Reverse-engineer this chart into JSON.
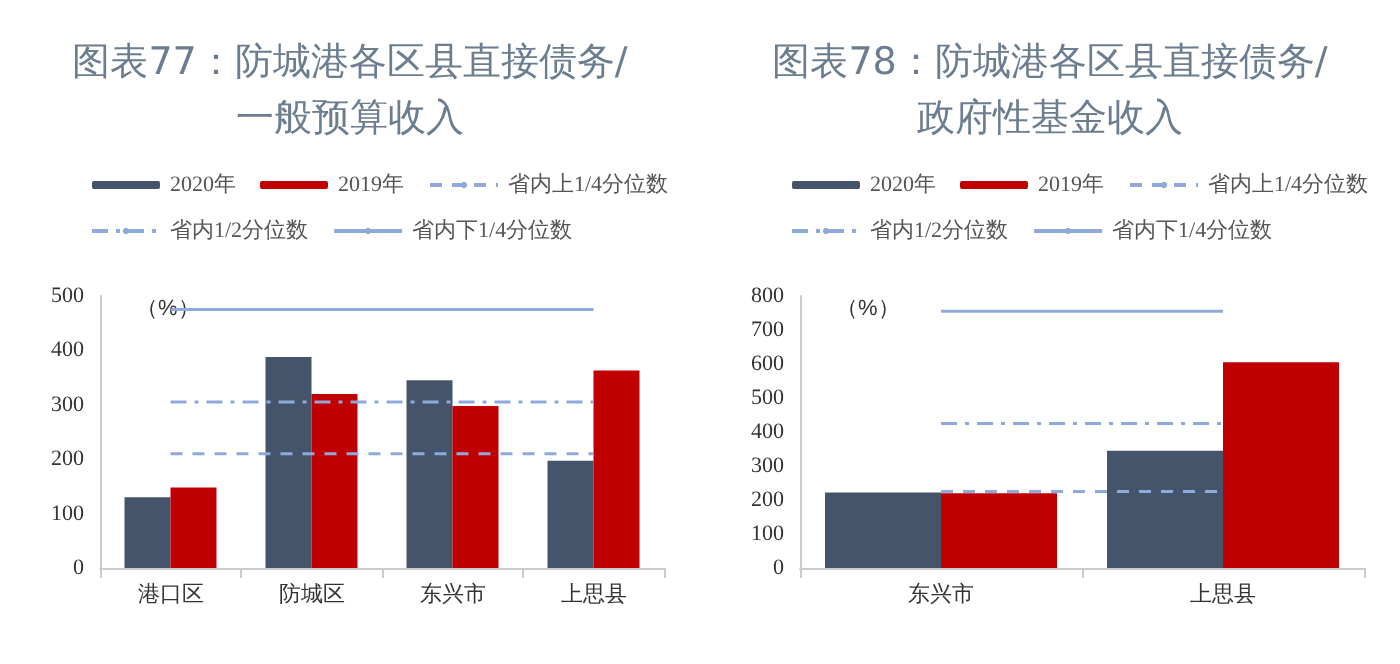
{
  "chart_data": [
    {
      "type": "bar",
      "title": "图表77：防城港各区县直接债务/一般预算收入",
      "ylabel": "（%）",
      "categories": [
        "港口区",
        "防城区",
        "东兴市",
        "上思县"
      ],
      "ylim": [
        0,
        500
      ],
      "yticks": [
        0,
        100,
        200,
        300,
        400,
        500
      ],
      "grid": false,
      "legend": "top",
      "marker": "none",
      "series": [
        {
          "name": "2020年",
          "color": "#44546a",
          "values": [
            130,
            388,
            345,
            197
          ]
        },
        {
          "name": "2019年",
          "color": "#c00000",
          "values": [
            148,
            320,
            298,
            363
          ]
        },
        {
          "name": "省内上1/4分位数",
          "type": "line",
          "line_style": "dashed",
          "color": "#8eaadb",
          "values": [
            210,
            210,
            210,
            210
          ]
        },
        {
          "name": "省内1/2分位数",
          "type": "line",
          "line_style": "dashdot",
          "color": "#8eaadb",
          "values": [
            305,
            305,
            305,
            305
          ]
        },
        {
          "name": "省内下1/4分位数",
          "type": "line",
          "line_style": "solid",
          "color": "#8eaadb",
          "values": [
            475,
            475,
            475,
            475
          ]
        }
      ]
    },
    {
      "type": "bar",
      "title": "图表78：防城港各区县直接债务/政府性基金收入",
      "ylabel": "（%）",
      "categories": [
        "东兴市",
        "上思县"
      ],
      "ylim": [
        0,
        800
      ],
      "yticks": [
        0,
        100,
        200,
        300,
        400,
        500,
        600,
        700,
        800
      ],
      "grid": false,
      "legend": "top",
      "marker": "none",
      "series": [
        {
          "name": "2020年",
          "color": "#44546a",
          "values": [
            222,
            345
          ]
        },
        {
          "name": "2019年",
          "color": "#c00000",
          "values": [
            220,
            605
          ]
        },
        {
          "name": "省内上1/4分位数",
          "type": "line",
          "line_style": "dashed",
          "color": "#8eaadb",
          "values": [
            225,
            225
          ]
        },
        {
          "name": "省内1/2分位数",
          "type": "line",
          "line_style": "dashdot",
          "color": "#8eaadb",
          "values": [
            425,
            425
          ]
        },
        {
          "name": "省内下1/4分位数",
          "type": "line",
          "line_style": "solid",
          "color": "#8eaadb",
          "values": [
            755,
            755
          ]
        }
      ]
    }
  ]
}
